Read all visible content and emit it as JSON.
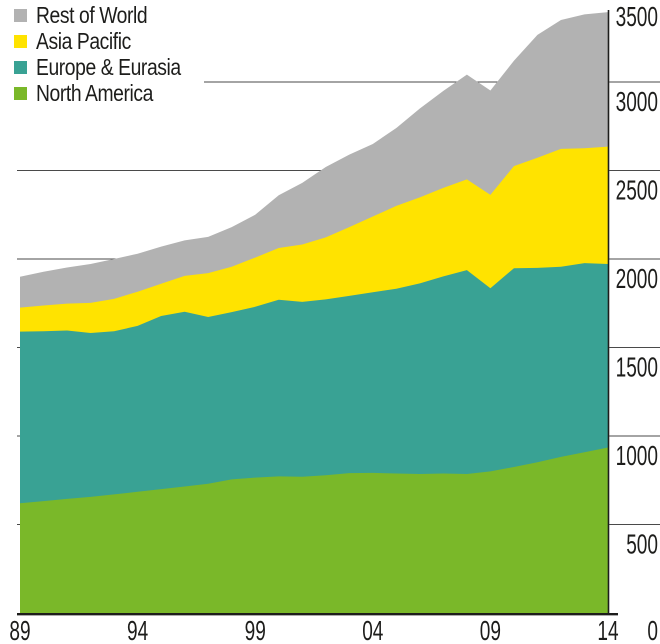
{
  "chart_data": {
    "type": "area",
    "stacked": true,
    "title": "",
    "xlabel": "",
    "ylabel": "",
    "x": [
      1989,
      1990,
      1991,
      1992,
      1993,
      1994,
      1995,
      1996,
      1997,
      1998,
      1999,
      2000,
      2001,
      2002,
      2003,
      2004,
      2005,
      2006,
      2007,
      2008,
      2009,
      2010,
      2011,
      2012,
      2013,
      2014
    ],
    "series": [
      {
        "name": "North America",
        "color": "#7ab829",
        "values": [
          620,
          632,
          645,
          656,
          670,
          685,
          700,
          715,
          730,
          755,
          765,
          772,
          770,
          778,
          790,
          792,
          788,
          785,
          788,
          785,
          800,
          825,
          852,
          882,
          908,
          935
        ]
      },
      {
        "name": "Europe & Eurasia",
        "color": "#39a294",
        "values": [
          970,
          960,
          951,
          926,
          922,
          937,
          978,
          987,
          942,
          945,
          965,
          998,
          988,
          994,
          1002,
          1020,
          1044,
          1077,
          1114,
          1152,
          1035,
          1123,
          1098,
          1074,
          1069,
          1037
        ]
      },
      {
        "name": "Asia Pacific",
        "color": "#ffe300",
        "values": [
          135,
          145,
          152,
          170,
          183,
          193,
          182,
          203,
          248,
          256,
          278,
          292,
          324,
          350,
          388,
          428,
          468,
          486,
          500,
          513,
          527,
          577,
          622,
          666,
          649,
          663
        ]
      },
      {
        "name": "Rest of World",
        "color": "#b2b2b2",
        "values": [
          175,
          191,
          204,
          220,
          225,
          215,
          210,
          200,
          205,
          224,
          242,
          298,
          348,
          398,
          410,
          410,
          440,
          502,
          548,
          592,
          590,
          595,
          694,
          728,
          756,
          760
        ]
      }
    ],
    "legend_order": [
      "Rest of World",
      "Asia Pacific",
      "Europe & Eurasia",
      "North America"
    ],
    "legend_position": "top-left",
    "ylim": [
      0,
      3500
    ],
    "yticks": [
      0,
      500,
      1000,
      1500,
      2000,
      2500,
      3000,
      3500
    ],
    "xtick_years": [
      1989,
      1994,
      1999,
      2004,
      2009,
      2014
    ],
    "xtick_labels": [
      "89",
      "94",
      "99",
      "04",
      "09",
      "14"
    ],
    "grid": "horizontal",
    "colors": {
      "background": "#ffffff",
      "axis": "#1d1d1b",
      "grid": "#4a4a4a",
      "text": "#1d1d1b"
    }
  }
}
